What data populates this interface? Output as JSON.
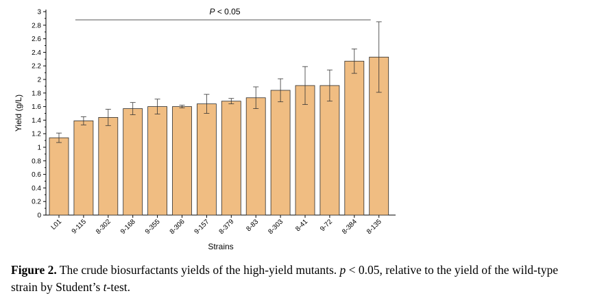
{
  "chart_data": {
    "type": "bar",
    "xlabel": "Strains",
    "ylabel": "Yield (g/L)",
    "ylim": [
      0,
      3
    ],
    "yticks": [
      "0",
      "0.2",
      "0.4",
      "0.6",
      "0.8",
      "1",
      "1.2",
      "1.4",
      "1.6",
      "1.8",
      "2",
      "2.2",
      "2.4",
      "2.6",
      "2.8",
      "3"
    ],
    "categories": [
      "L01",
      "9-115",
      "8-302",
      "9-168",
      "9-355",
      "8-306",
      "9-157",
      "8-379",
      "8-83",
      "8-303",
      "8-41",
      "9-72",
      "8-384",
      "8-135"
    ],
    "values": [
      1.14,
      1.39,
      1.44,
      1.57,
      1.6,
      1.6,
      1.64,
      1.68,
      1.73,
      1.84,
      1.91,
      1.91,
      2.27,
      2.33
    ],
    "errors": [
      0.07,
      0.06,
      0.12,
      0.09,
      0.11,
      0.02,
      0.14,
      0.04,
      0.16,
      0.17,
      0.28,
      0.23,
      0.18,
      0.52
    ],
    "bar_color": "#f0bd82",
    "bar_edge_color": "#2b2b2b",
    "significance": {
      "label_prefix": "P",
      "label_rest": " < 0.05",
      "from_category": "9-115",
      "to_category": "8-135"
    },
    "grid": false
  },
  "caption": {
    "label": "Figure 2.",
    "text_1": " The crude biosurfactants yields of the high-yield mutants. ",
    "p_symbol": "p",
    "text_2": " < 0.05, relative to the yield of the wild-type strain by Student’s ",
    "t_symbol": "t",
    "text_3": "-test."
  }
}
